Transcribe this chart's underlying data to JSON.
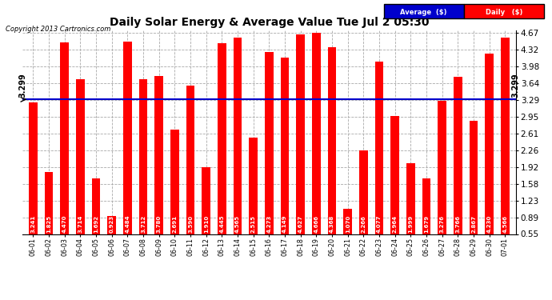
{
  "title": "Daily Solar Energy & Average Value Tue Jul 2 05:30",
  "copyright": "Copyright 2013 Cartronics.com",
  "average_value": 3.299,
  "bar_color": "#FF0000",
  "average_line_color": "#0000CC",
  "background_color": "#FFFFFF",
  "plot_bg_color": "#FFFFFF",
  "categories": [
    "06-01",
    "06-02",
    "06-03",
    "06-04",
    "06-05",
    "06-06",
    "06-07",
    "06-08",
    "06-09",
    "06-10",
    "06-11",
    "06-12",
    "06-13",
    "06-14",
    "06-15",
    "06-16",
    "06-17",
    "06-18",
    "06-19",
    "06-20",
    "06-21",
    "06-22",
    "06-23",
    "06-24",
    "06-25",
    "06-26",
    "06-27",
    "06-28",
    "06-29",
    "06-30",
    "07-01"
  ],
  "values": [
    3.241,
    1.825,
    4.47,
    3.714,
    1.692,
    0.923,
    4.484,
    3.712,
    3.78,
    2.691,
    3.59,
    1.91,
    4.445,
    4.565,
    2.515,
    4.273,
    4.149,
    4.627,
    4.666,
    4.368,
    1.07,
    2.266,
    4.077,
    2.964,
    1.999,
    1.679,
    3.276,
    3.766,
    2.867,
    4.23,
    4.566
  ],
  "ylim_min": 0.55,
  "ylim_max": 4.67,
  "yticks": [
    0.55,
    0.89,
    1.23,
    1.58,
    1.92,
    2.26,
    2.61,
    2.95,
    3.29,
    3.64,
    3.98,
    4.32,
    4.67
  ],
  "grid_color": "#AAAAAA",
  "legend_avg_bg": "#0000CC",
  "legend_daily_bg": "#FF0000",
  "legend_avg_text": "Average  ($)",
  "legend_daily_text": "Daily   ($)"
}
